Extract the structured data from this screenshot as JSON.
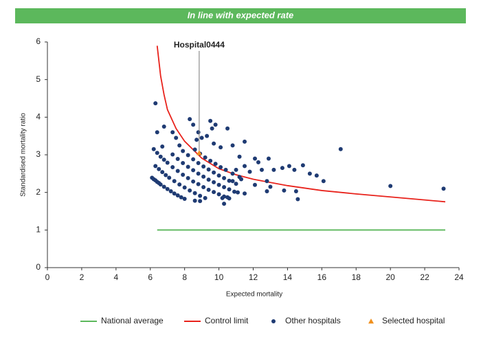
{
  "chart_data": {
    "type": "scatter",
    "title": "In line with expected rate",
    "banner_color": "#5cb85c",
    "xlabel": "Expected mortality",
    "ylabel": "Standardised mortality ratio",
    "xlim": [
      0,
      24
    ],
    "ylim": [
      0,
      6
    ],
    "xticks": [
      0,
      2,
      4,
      6,
      8,
      10,
      12,
      14,
      16,
      18,
      20,
      22,
      24
    ],
    "yticks": [
      0,
      1,
      2,
      3,
      4,
      5,
      6
    ],
    "annotation": "Hospital0444",
    "series": [
      {
        "name": "National average",
        "marker": "line",
        "color": "#5cb85c",
        "x": [
          6.4,
          23.2
        ],
        "y": [
          1,
          1
        ]
      },
      {
        "name": "Control limit",
        "marker": "line",
        "color": "#e8221b",
        "x": [
          6.4,
          6.6,
          6.8,
          7.0,
          7.5,
          8,
          9,
          10,
          11,
          12,
          14,
          16,
          18,
          20,
          22,
          23.2
        ],
        "y": [
          5.9,
          5.1,
          4.6,
          4.2,
          3.7,
          3.36,
          2.91,
          2.63,
          2.47,
          2.35,
          2.18,
          2.05,
          1.96,
          1.88,
          1.8,
          1.75
        ]
      },
      {
        "name": "Other hospitals",
        "marker": "circle",
        "color": "#1f3b73",
        "x": [
          6.1,
          6.2,
          6.3,
          6.4,
          6.5,
          6.6,
          6.8,
          7.0,
          7.2,
          7.4,
          7.6,
          7.8,
          8.0,
          8.6,
          8.9,
          6.3,
          6.5,
          6.7,
          6.9,
          7.1,
          7.4,
          7.7,
          8.0,
          8.3,
          8.6,
          8.9,
          9.2,
          6.2,
          6.4,
          6.6,
          6.8,
          7.0,
          7.3,
          7.6,
          7.9,
          8.2,
          8.5,
          8.8,
          9.1,
          9.4,
          9.7,
          10.0,
          10.3,
          10.6,
          7.3,
          7.6,
          7.9,
          8.2,
          8.5,
          8.8,
          9.1,
          9.4,
          9.7,
          10.0,
          10.3,
          10.6,
          10.9,
          7.9,
          8.2,
          8.5,
          8.8,
          9.1,
          9.4,
          9.7,
          10.0,
          10.3,
          10.6,
          11.0,
          8.6,
          8.9,
          9.2,
          9.5,
          9.8,
          10.1,
          10.4,
          10.8,
          11.2,
          6.3,
          6.4,
          6.8,
          7.3,
          7.5,
          6.7,
          7.7,
          8.3,
          8.5,
          8.8,
          9.0,
          8.7,
          9.5,
          9.6,
          9.8,
          9.3,
          10.5,
          9.7,
          10.1,
          10.8,
          11.2,
          11.5,
          11.0,
          11.5,
          11.8,
          12.1,
          12.3,
          12.5,
          12.9,
          13.2,
          13.7,
          14.1,
          14.4,
          14.9,
          15.3,
          15.7,
          16.1,
          17.1,
          12.1,
          12.8,
          13.0,
          12.8,
          13.8,
          14.5,
          14.6,
          11.1,
          11.5,
          10.3,
          10.2,
          10.8,
          11.3,
          20.0,
          23.1,
          10.5
        ],
        "y": [
          2.39,
          2.35,
          2.32,
          2.28,
          2.25,
          2.21,
          2.15,
          2.09,
          2.03,
          1.97,
          1.92,
          1.87,
          1.83,
          1.78,
          1.77,
          2.7,
          2.62,
          2.54,
          2.46,
          2.39,
          2.3,
          2.21,
          2.13,
          2.05,
          1.98,
          1.91,
          1.85,
          3.15,
          3.05,
          2.95,
          2.87,
          2.79,
          2.67,
          2.57,
          2.47,
          2.38,
          2.29,
          2.22,
          2.14,
          2.07,
          2.01,
          1.95,
          1.89,
          1.84,
          3.01,
          2.89,
          2.78,
          2.68,
          2.59,
          2.5,
          2.42,
          2.34,
          2.27,
          2.2,
          2.14,
          2.08,
          2.02,
          3.1,
          2.99,
          2.88,
          2.78,
          2.69,
          2.61,
          2.53,
          2.45,
          2.38,
          2.31,
          2.23,
          3.14,
          3.03,
          2.93,
          2.84,
          2.76,
          2.67,
          2.6,
          2.5,
          2.41,
          4.37,
          3.6,
          3.75,
          3.6,
          3.45,
          3.22,
          3.25,
          3.95,
          3.8,
          3.6,
          3.45,
          3.4,
          3.9,
          3.7,
          3.8,
          3.5,
          3.7,
          3.3,
          3.2,
          3.25,
          2.95,
          3.35,
          2.6,
          2.7,
          2.55,
          2.9,
          2.8,
          2.6,
          2.9,
          2.6,
          2.65,
          2.7,
          2.6,
          2.72,
          2.5,
          2.45,
          2.3,
          3.15,
          2.2,
          2.3,
          2.15,
          2.03,
          2.05,
          2.03,
          1.82,
          2.0,
          1.97,
          1.7,
          1.85,
          2.3,
          2.35,
          2.17,
          2.1,
          1.87
        ]
      },
      {
        "name": "Selected hospital",
        "marker": "triangle",
        "color": "#f0901e",
        "x": [
          8.85
        ],
        "y": [
          3.05
        ]
      }
    ]
  }
}
